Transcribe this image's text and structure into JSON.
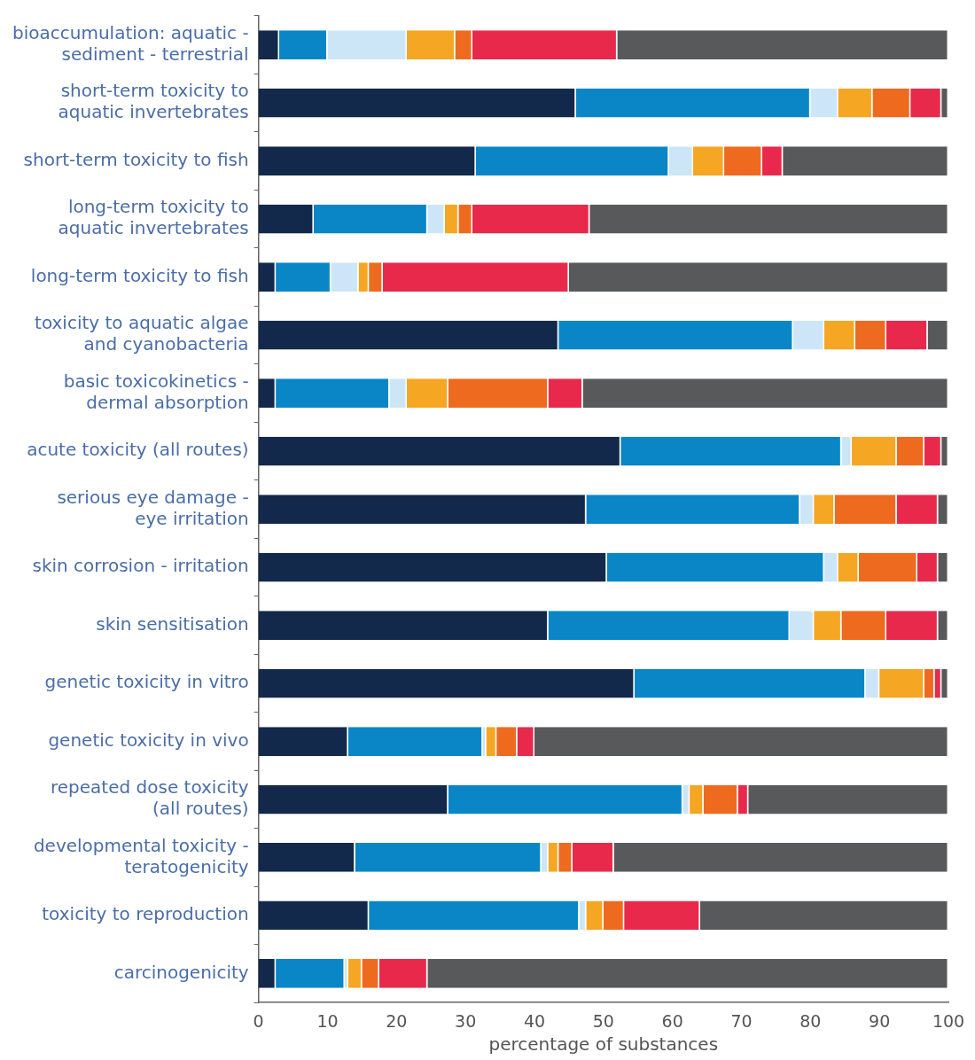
{
  "chart_data": {
    "type": "bar",
    "orientation": "horizontal",
    "stacked": true,
    "xlabel": "percentage of substances",
    "categories": [
      "bioaccumulation: aquatic - sediment - terrestrial",
      "short-term toxicity to aquatic invertebrates",
      "short-term toxicity to fish",
      "long-term toxicity to aquatic invertebrates",
      "long-term toxicity to fish",
      "toxicity to aquatic algae and cyanobacteria",
      "basic toxicokinetics - dermal absorption",
      "acute toxicity (all routes)",
      "serious eye damage - eye irritation",
      "skin corrosion - irritation",
      "skin sensitisation",
      "genetic toxicity in vitro",
      "genetic toxicity in vivo",
      "repeated dose toxicity (all routes)",
      "developmental toxicity - teratogenicity",
      "toxicity to reproduction",
      "carcinogenicity"
    ],
    "series": [
      {
        "color": "#13294b",
        "values": [
          3,
          46,
          31.5,
          8,
          2.5,
          43.5,
          2.5,
          52.5,
          47.5,
          50.5,
          42,
          54.5,
          13,
          27.5,
          14,
          16,
          2.5
        ]
      },
      {
        "color": "#0a86c7",
        "values": [
          7,
          34,
          28,
          16.5,
          8,
          34,
          16.5,
          32,
          31,
          31.5,
          35,
          33.5,
          19.5,
          34,
          27,
          30.5,
          10
        ]
      },
      {
        "color": "#cde6f7",
        "values": [
          11.5,
          4,
          3.5,
          2.5,
          4,
          4.5,
          2.5,
          1.5,
          2,
          2,
          3.5,
          2,
          0.5,
          1,
          1,
          1,
          0.5
        ]
      },
      {
        "color": "#f5a623",
        "values": [
          7,
          5,
          4.5,
          2,
          1.5,
          4.5,
          6,
          6.5,
          3,
          3,
          4,
          6.5,
          1.5,
          2,
          1.5,
          2.5,
          2
        ]
      },
      {
        "color": "#ee6a1f",
        "values": [
          2.5,
          5.5,
          5.5,
          2,
          2,
          4.5,
          14.5,
          4,
          9,
          8.5,
          6.5,
          1.5,
          3,
          5,
          2,
          3,
          2.5
        ]
      },
      {
        "color": "#e8294c",
        "values": [
          21,
          4.5,
          3,
          17,
          27,
          6,
          5,
          2.5,
          6,
          3,
          7.5,
          1,
          2.5,
          1.5,
          6,
          11,
          7
        ]
      },
      {
        "color": "#58595b",
        "values": [
          48,
          1,
          24,
          52,
          55,
          3,
          53,
          1,
          1.5,
          1.5,
          1.5,
          1,
          60,
          29,
          48.5,
          36,
          75.5
        ]
      }
    ],
    "xlim": [
      0,
      100
    ],
    "xticks": [
      0,
      10,
      20,
      30,
      40,
      50,
      60,
      70,
      80,
      90,
      100
    ],
    "grid": false,
    "legend": false
  }
}
